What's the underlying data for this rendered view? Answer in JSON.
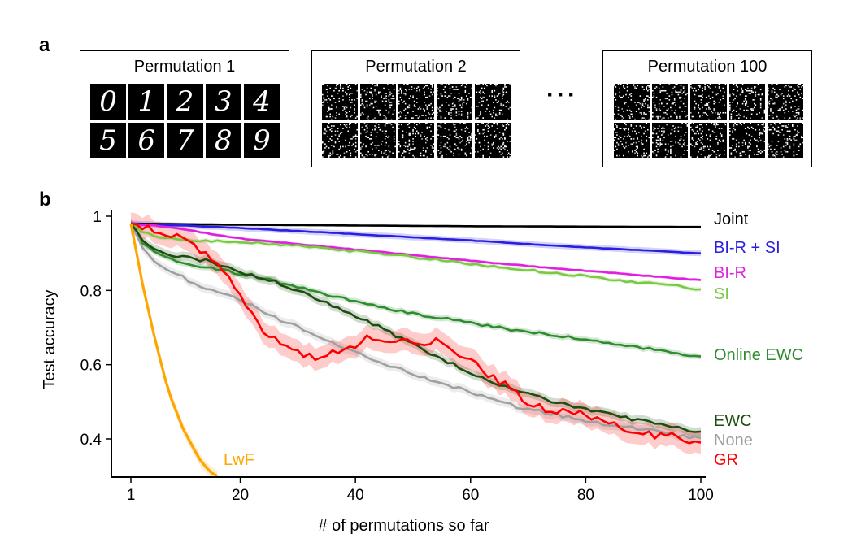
{
  "panel_a": {
    "letter": "a",
    "boxes": [
      {
        "title": "Permutation 1",
        "kind": "digits",
        "digits": [
          "0",
          "1",
          "2",
          "3",
          "4",
          "5",
          "6",
          "7",
          "8",
          "9"
        ]
      },
      {
        "title": "Permutation 2",
        "kind": "noise"
      },
      {
        "title": "Permutation 100",
        "kind": "noise"
      }
    ],
    "ellipsis": "···"
  },
  "panel_b": {
    "letter": "b"
  },
  "chart_data": {
    "type": "line",
    "xlabel": "# of permutations so far",
    "ylabel": "Test accuracy",
    "xlim": [
      1,
      100
    ],
    "ylim": [
      0.3,
      1.0
    ],
    "xticks": [
      1,
      20,
      40,
      60,
      80,
      100
    ],
    "xtick_labels": [
      "1",
      "20",
      "40",
      "60",
      "80",
      "100"
    ],
    "yticks": [
      0.4,
      0.6,
      0.8,
      1.0
    ],
    "ytick_labels": [
      "0.4",
      "0.6",
      "0.8",
      "1"
    ],
    "grid": false,
    "legend": "inline labels at right end of each line",
    "series": [
      {
        "name": "Joint",
        "color": "#000000",
        "band": 0.0,
        "points": [
          [
            1,
            0.98
          ],
          [
            20,
            0.977
          ],
          [
            40,
            0.975
          ],
          [
            60,
            0.973
          ],
          [
            80,
            0.972
          ],
          [
            100,
            0.971
          ]
        ]
      },
      {
        "name": "BI-R + SI",
        "color": "#2a1fe0",
        "band": 0.008,
        "points": [
          [
            1,
            0.98
          ],
          [
            10,
            0.975
          ],
          [
            20,
            0.968
          ],
          [
            30,
            0.96
          ],
          [
            40,
            0.952
          ],
          [
            50,
            0.943
          ],
          [
            60,
            0.935
          ],
          [
            70,
            0.925
          ],
          [
            80,
            0.916
          ],
          [
            90,
            0.908
          ],
          [
            100,
            0.9
          ]
        ]
      },
      {
        "name": "BI-R",
        "color": "#e020e0",
        "band": 0.004,
        "points": [
          [
            1,
            0.98
          ],
          [
            5,
            0.975
          ],
          [
            10,
            0.965
          ],
          [
            15,
            0.952
          ],
          [
            20,
            0.94
          ],
          [
            30,
            0.925
          ],
          [
            40,
            0.91
          ],
          [
            50,
            0.895
          ],
          [
            60,
            0.88
          ],
          [
            70,
            0.866
          ],
          [
            80,
            0.853
          ],
          [
            90,
            0.84
          ],
          [
            100,
            0.828
          ]
        ]
      },
      {
        "name": "SI",
        "color": "#7ac943",
        "band": 0.006,
        "points": [
          [
            1,
            0.98
          ],
          [
            3,
            0.96
          ],
          [
            5,
            0.945
          ],
          [
            8,
            0.94
          ],
          [
            12,
            0.935
          ],
          [
            20,
            0.932
          ],
          [
            30,
            0.92
          ],
          [
            40,
            0.906
          ],
          [
            50,
            0.89
          ],
          [
            60,
            0.872
          ],
          [
            70,
            0.855
          ],
          [
            80,
            0.838
          ],
          [
            90,
            0.82
          ],
          [
            96,
            0.812
          ],
          [
            100,
            0.803
          ]
        ]
      },
      {
        "name": "Online EWC",
        "color": "#2e8b2e",
        "band": 0.008,
        "points": [
          [
            1,
            0.98
          ],
          [
            3,
            0.93
          ],
          [
            5,
            0.905
          ],
          [
            8,
            0.885
          ],
          [
            12,
            0.868
          ],
          [
            16,
            0.857
          ],
          [
            20,
            0.845
          ],
          [
            25,
            0.83
          ],
          [
            30,
            0.808
          ],
          [
            35,
            0.79
          ],
          [
            40,
            0.77
          ],
          [
            45,
            0.753
          ],
          [
            50,
            0.738
          ],
          [
            55,
            0.725
          ],
          [
            60,
            0.713
          ],
          [
            65,
            0.7
          ],
          [
            70,
            0.688
          ],
          [
            75,
            0.678
          ],
          [
            80,
            0.668
          ],
          [
            85,
            0.655
          ],
          [
            90,
            0.645
          ],
          [
            95,
            0.633
          ],
          [
            100,
            0.622
          ]
        ]
      },
      {
        "name": "None",
        "color": "#a0a0a0",
        "band": 0.012,
        "points": [
          [
            1,
            0.98
          ],
          [
            3,
            0.92
          ],
          [
            5,
            0.88
          ],
          [
            8,
            0.85
          ],
          [
            12,
            0.82
          ],
          [
            16,
            0.795
          ],
          [
            20,
            0.775
          ],
          [
            25,
            0.735
          ],
          [
            30,
            0.7
          ],
          [
            35,
            0.665
          ],
          [
            40,
            0.635
          ],
          [
            45,
            0.605
          ],
          [
            50,
            0.575
          ],
          [
            55,
            0.55
          ],
          [
            60,
            0.525
          ],
          [
            65,
            0.5
          ],
          [
            70,
            0.48
          ],
          [
            75,
            0.465
          ],
          [
            80,
            0.45
          ],
          [
            85,
            0.435
          ],
          [
            90,
            0.425
          ],
          [
            95,
            0.412
          ],
          [
            100,
            0.402
          ]
        ]
      },
      {
        "name": "EWC",
        "color": "#1e4d0f",
        "band": 0.012,
        "points": [
          [
            1,
            0.98
          ],
          [
            3,
            0.94
          ],
          [
            5,
            0.915
          ],
          [
            8,
            0.895
          ],
          [
            12,
            0.885
          ],
          [
            15,
            0.878
          ],
          [
            20,
            0.85
          ],
          [
            25,
            0.83
          ],
          [
            30,
            0.8
          ],
          [
            35,
            0.765
          ],
          [
            40,
            0.73
          ],
          [
            45,
            0.695
          ],
          [
            50,
            0.655
          ],
          [
            55,
            0.615
          ],
          [
            60,
            0.58
          ],
          [
            65,
            0.545
          ],
          [
            70,
            0.52
          ],
          [
            75,
            0.497
          ],
          [
            80,
            0.48
          ],
          [
            85,
            0.462
          ],
          [
            90,
            0.447
          ],
          [
            95,
            0.432
          ],
          [
            100,
            0.42
          ]
        ]
      },
      {
        "name": "GR",
        "color": "#ff0000",
        "band": 0.03,
        "points": [
          [
            1,
            0.98
          ],
          [
            3,
            0.975
          ],
          [
            6,
            0.96
          ],
          [
            10,
            0.94
          ],
          [
            14,
            0.9
          ],
          [
            17,
            0.86
          ],
          [
            20,
            0.79
          ],
          [
            22,
            0.74
          ],
          [
            25,
            0.67
          ],
          [
            28,
            0.66
          ],
          [
            30,
            0.63
          ],
          [
            33,
            0.62
          ],
          [
            36,
            0.63
          ],
          [
            39,
            0.64
          ],
          [
            42,
            0.675
          ],
          [
            45,
            0.655
          ],
          [
            48,
            0.665
          ],
          [
            51,
            0.66
          ],
          [
            54,
            0.665
          ],
          [
            57,
            0.635
          ],
          [
            60,
            0.61
          ],
          [
            63,
            0.575
          ],
          [
            66,
            0.545
          ],
          [
            70,
            0.5
          ],
          [
            73,
            0.48
          ],
          [
            76,
            0.475
          ],
          [
            80,
            0.465
          ],
          [
            84,
            0.44
          ],
          [
            88,
            0.42
          ],
          [
            92,
            0.41
          ],
          [
            96,
            0.405
          ],
          [
            100,
            0.39
          ]
        ]
      },
      {
        "name": "LwF",
        "color": "#ffa500",
        "band": 0.015,
        "points": [
          [
            1,
            0.98
          ],
          [
            2,
            0.9
          ],
          [
            3,
            0.82
          ],
          [
            4,
            0.75
          ],
          [
            5,
            0.68
          ],
          [
            6,
            0.62
          ],
          [
            7,
            0.56
          ],
          [
            8,
            0.51
          ],
          [
            9,
            0.47
          ],
          [
            10,
            0.43
          ],
          [
            11,
            0.4
          ],
          [
            12,
            0.37
          ],
          [
            13,
            0.345
          ],
          [
            14,
            0.325
          ],
          [
            15,
            0.31
          ],
          [
            16,
            0.3
          ]
        ]
      }
    ]
  }
}
